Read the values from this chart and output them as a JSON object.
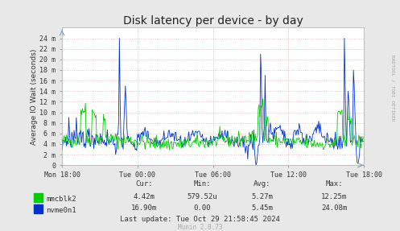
{
  "title": "Disk latency per device - by day",
  "ylabel": "Average IO Wait (seconds)",
  "bg_color": "#e8e8e8",
  "plot_bg_color": "#ffffff",
  "grid_color": "#ddaaaa",
  "line_color_green": "#00cc00",
  "line_color_blue": "#0033cc",
  "ylim": [
    0,
    26
  ],
  "ytick_labels": [
    "0",
    "2 m",
    "4 m",
    "6 m",
    "8 m",
    "10 m",
    "12 m",
    "14 m",
    "16 m",
    "18 m",
    "20 m",
    "22 m",
    "24 m"
  ],
  "ytick_values": [
    0,
    2,
    4,
    6,
    8,
    10,
    12,
    14,
    16,
    18,
    20,
    22,
    24
  ],
  "xtick_labels": [
    "Mon 18:00",
    "Tue 00:00",
    "Tue 06:00",
    "Tue 12:00",
    "Tue 18:00"
  ],
  "legend_mmcblk2": "mmcblk2",
  "legend_nvme0n1": "nvme0n1",
  "cur_mmcblk2": "4.42m",
  "min_mmcblk2": "579.52u",
  "avg_mmcblk2": "5.27m",
  "max_mmcblk2": "12.25m",
  "cur_nvme0n1": "16.90m",
  "min_nvme0n1": "0.00",
  "avg_nvme0n1": "5.45m",
  "max_nvme0n1": "24.08m",
  "last_update": "Last update: Tue Oct 29 21:58:45 2024",
  "munin_version": "Munin 2.0.73",
  "rrdtool_label": "RRDTOOL / TOBI OETIKER",
  "title_fontsize": 10,
  "label_fontsize": 6.5,
  "tick_fontsize": 6,
  "n_points": 400
}
